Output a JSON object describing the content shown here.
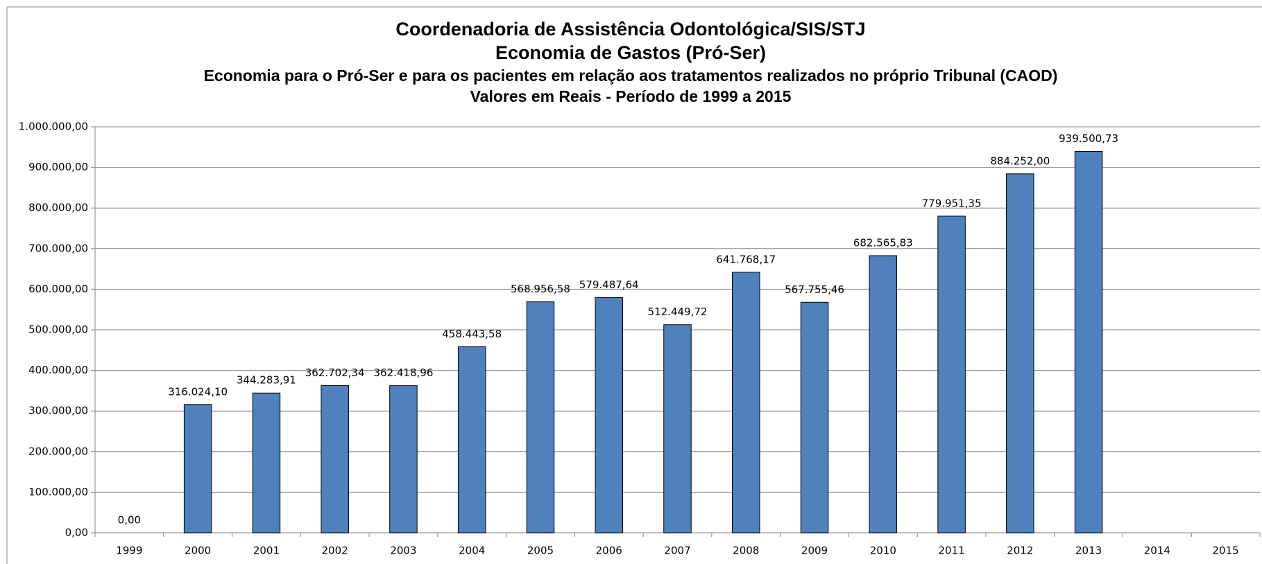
{
  "chart_data": {
    "type": "bar",
    "title": "Coordenadoria de Assistência Odontológica/SIS/STJ",
    "subtitles": [
      "Economia de Gastos (Pró-Ser)",
      "Economia para o Pró-Ser e para os pacientes em relação aos tratamentos realizados no próprio Tribunal (CAOD)",
      "Valores em Reais - Período de 1999 a 2015"
    ],
    "categories": [
      "1999",
      "2000",
      "2001",
      "2002",
      "2003",
      "2004",
      "2005",
      "2006",
      "2007",
      "2008",
      "2009",
      "2010",
      "2011",
      "2012",
      "2013",
      "2014",
      "2015"
    ],
    "values": [
      0,
      316024.1,
      344283.91,
      362702.34,
      362418.96,
      458443.58,
      568956.58,
      579487.64,
      512449.72,
      641768.17,
      567755.46,
      682565.83,
      779951.35,
      884252.0,
      939500.73,
      null,
      null
    ],
    "value_labels": [
      "0,00",
      "316.024,10",
      "344.283,91",
      "362.702,34",
      "362.418,96",
      "458.443,58",
      "568.956,58",
      "579.487,64",
      "512.449,72",
      "641.768,17",
      "567.755,46",
      "682.565,83",
      "779.951,35",
      "884.252,00",
      "939.500,73",
      null,
      null
    ],
    "color": "#4f81bd",
    "ylim": [
      0,
      1000000
    ],
    "yticks": [
      {
        "value": 0,
        "label": "0,00"
      },
      {
        "value": 100000,
        "label": "100.000,00"
      },
      {
        "value": 200000,
        "label": "200.000,00"
      },
      {
        "value": 300000,
        "label": "300.000,00"
      },
      {
        "value": 400000,
        "label": "400.000,00"
      },
      {
        "value": 500000,
        "label": "500.000,00"
      },
      {
        "value": 600000,
        "label": "600.000,00"
      },
      {
        "value": 700000,
        "label": "700.000,00"
      },
      {
        "value": 800000,
        "label": "800.000,00"
      },
      {
        "value": 900000,
        "label": "900.000,00"
      },
      {
        "value": 1000000,
        "label": "1.000.000,00"
      }
    ],
    "grid": true
  }
}
